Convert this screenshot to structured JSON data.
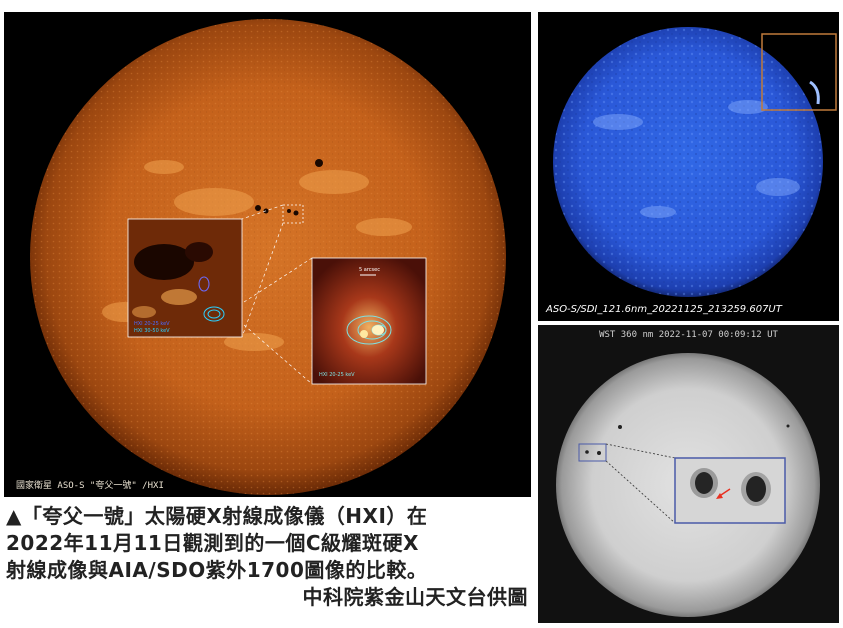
{
  "panels": {
    "main": {
      "credit": "國家衛星  ASO-S \"夸父一號\" /HXI",
      "inset_labels": [
        "HXI 20-25 keV",
        "HXI 30-50 keV",
        "HXI 20-25 keV"
      ],
      "scale_label": "5 arcsec"
    },
    "blue": {
      "credit": "ASO-S/SDI_121.6nm_20221125_213259.607UT"
    },
    "white": {
      "credit": "WST 360 nm  2022-11-07 00:09:12 UT"
    }
  },
  "caption": {
    "line1": "▲「夸父一號」太陽硬X射線成像儀（HXI）在",
    "line2": "2022年11月11日觀測到的一個C級耀斑硬X",
    "line3": "射線成像與AIA/SDO紫外1700圖像的比較。",
    "credit": "中科院紫金山天文台供圖"
  },
  "colors": {
    "solar_orange": "#c8641a",
    "lyman_blue": "#2c5fe0",
    "whitelight": "#d8d8d8",
    "inset_frame": "#4a5aa8",
    "arrow": "#e83020"
  }
}
